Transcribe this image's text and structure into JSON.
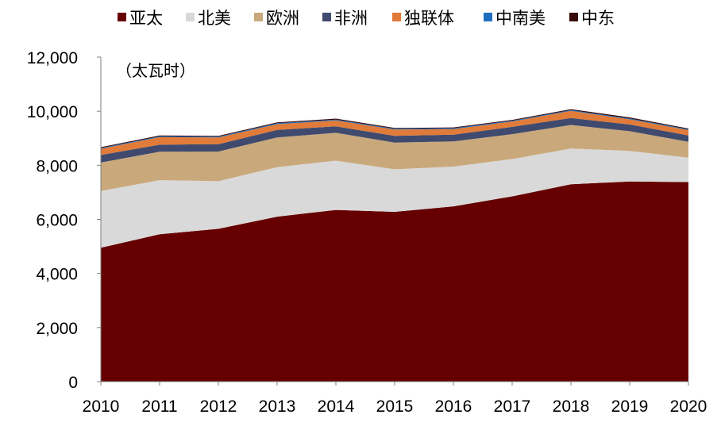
{
  "chart_data": {
    "type": "area",
    "stacked": true,
    "title": "",
    "unit_label": "（太瓦时）",
    "xlabel": "",
    "ylabel": "",
    "x": [
      "2010",
      "2011",
      "2012",
      "2013",
      "2014",
      "2015",
      "2016",
      "2017",
      "2018",
      "2019",
      "2020"
    ],
    "y_ticks": [
      "0",
      "2,000",
      "4,000",
      "6,000",
      "8,000",
      "10,000",
      "12,000"
    ],
    "ylim": [
      0,
      12000
    ],
    "legend_position": "top",
    "series": [
      {
        "name": "亚太",
        "color": "#660000",
        "values": [
          4950,
          5450,
          5650,
          6100,
          6350,
          6280,
          6480,
          6850,
          7300,
          7400,
          7380
        ]
      },
      {
        "name": "北美",
        "color": "#d9d9d9",
        "values": [
          2100,
          2000,
          1760,
          1830,
          1820,
          1570,
          1470,
          1380,
          1320,
          1130,
          900
        ]
      },
      {
        "name": "欧洲",
        "color": "#c9a97c",
        "values": [
          1050,
          1050,
          1100,
          1100,
          1030,
          990,
          930,
          920,
          870,
          730,
          590
        ]
      },
      {
        "name": "非洲",
        "color": "#404a6e",
        "values": [
          280,
          260,
          270,
          280,
          240,
          250,
          250,
          270,
          260,
          250,
          230
        ]
      },
      {
        "name": "独联体",
        "color": "#e07b39",
        "values": [
          230,
          280,
          250,
          210,
          220,
          230,
          210,
          200,
          260,
          190,
          200
        ]
      },
      {
        "name": "中南美",
        "color": "#1f6fbf",
        "values": [
          30,
          30,
          30,
          35,
          30,
          30,
          30,
          30,
          30,
          30,
          30
        ]
      },
      {
        "name": "中东",
        "color": "#3a0a0a",
        "values": [
          30,
          30,
          30,
          30,
          35,
          30,
          30,
          30,
          35,
          40,
          30
        ]
      }
    ]
  }
}
